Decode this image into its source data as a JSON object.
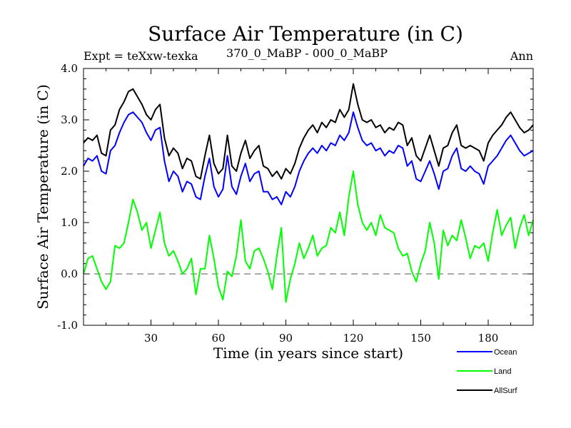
{
  "chart_data": {
    "type": "line",
    "title": "Surface Air Temperature (in C)",
    "subtitle_left": "Expt = teXxw-texka",
    "subtitle_center": "370_0_MaBP - 000_0_MaBP",
    "subtitle_right": "Ann",
    "xlabel": "Time (in years since start)",
    "ylabel": "Surface Air Temperature (in C)",
    "xlim": [
      0,
      200
    ],
    "ylim": [
      -1.0,
      4.0
    ],
    "xticks": [
      30,
      60,
      90,
      120,
      150,
      180
    ],
    "xtick_labels": [
      "30",
      "60",
      "90",
      "120",
      "150",
      "180"
    ],
    "yticks": [
      -1.0,
      0.0,
      1.0,
      2.0,
      3.0,
      4.0
    ],
    "ytick_labels": [
      "-1.0",
      "0.0",
      "1.0",
      "2.0",
      "3.0",
      "4.0"
    ],
    "reference_line": 0.0,
    "legend_position": "bottom-right, outside plot",
    "series": [
      {
        "name": "Ocean",
        "color": "#0000ff",
        "x": [
          0,
          2,
          4,
          6,
          8,
          10,
          12,
          14,
          16,
          18,
          20,
          22,
          24,
          26,
          28,
          30,
          32,
          34,
          36,
          38,
          40,
          42,
          44,
          46,
          48,
          50,
          52,
          54,
          56,
          58,
          60,
          62,
          64,
          66,
          68,
          70,
          72,
          74,
          76,
          78,
          80,
          82,
          84,
          86,
          88,
          90,
          92,
          94,
          96,
          98,
          100,
          102,
          104,
          106,
          108,
          110,
          112,
          114,
          116,
          118,
          120,
          122,
          124,
          126,
          128,
          130,
          132,
          134,
          136,
          138,
          140,
          142,
          144,
          146,
          148,
          150,
          152,
          154,
          156,
          158,
          160,
          162,
          164,
          166,
          168,
          170,
          172,
          174,
          176,
          178,
          180,
          182,
          184,
          186,
          188,
          190,
          192,
          194,
          196,
          198,
          200
        ],
        "values": [
          2.1,
          2.25,
          2.2,
          2.3,
          2.0,
          1.95,
          2.4,
          2.5,
          2.75,
          2.95,
          3.1,
          3.15,
          3.05,
          2.95,
          2.75,
          2.6,
          2.8,
          2.85,
          2.2,
          1.8,
          2.0,
          1.9,
          1.6,
          1.8,
          1.75,
          1.5,
          1.45,
          1.9,
          2.25,
          1.7,
          1.5,
          1.65,
          2.3,
          1.7,
          1.55,
          1.9,
          2.15,
          1.8,
          1.95,
          2.0,
          1.6,
          1.6,
          1.45,
          1.5,
          1.35,
          1.6,
          1.5,
          1.7,
          2.0,
          2.2,
          2.35,
          2.45,
          2.35,
          2.5,
          2.4,
          2.55,
          2.5,
          2.7,
          2.6,
          2.75,
          3.15,
          2.85,
          2.6,
          2.5,
          2.55,
          2.4,
          2.45,
          2.3,
          2.4,
          2.35,
          2.5,
          2.45,
          2.1,
          2.2,
          1.85,
          1.8,
          2.0,
          2.2,
          1.95,
          1.65,
          2.0,
          2.05,
          2.3,
          2.45,
          2.05,
          2.0,
          2.1,
          2.0,
          1.95,
          1.75,
          2.1,
          2.2,
          2.3,
          2.45,
          2.6,
          2.7,
          2.55,
          2.4,
          2.3,
          2.35,
          2.4
        ]
      },
      {
        "name": "Land",
        "color": "#00ff00",
        "x": [
          0,
          2,
          4,
          6,
          8,
          10,
          12,
          14,
          16,
          18,
          20,
          22,
          24,
          26,
          28,
          30,
          32,
          34,
          36,
          38,
          40,
          42,
          44,
          46,
          48,
          50,
          52,
          54,
          56,
          58,
          60,
          62,
          64,
          66,
          68,
          70,
          72,
          74,
          76,
          78,
          80,
          82,
          84,
          86,
          88,
          90,
          92,
          94,
          96,
          98,
          100,
          102,
          104,
          106,
          108,
          110,
          112,
          114,
          116,
          118,
          120,
          122,
          124,
          126,
          128,
          130,
          132,
          134,
          136,
          138,
          140,
          142,
          144,
          146,
          148,
          150,
          152,
          154,
          156,
          158,
          160,
          162,
          164,
          166,
          168,
          170,
          172,
          174,
          176,
          178,
          180,
          182,
          184,
          186,
          188,
          190,
          192,
          194,
          196,
          198,
          200
        ],
        "values": [
          0.0,
          0.3,
          0.35,
          0.1,
          -0.15,
          -0.3,
          -0.15,
          0.55,
          0.5,
          0.6,
          1.0,
          1.45,
          1.2,
          0.85,
          1.0,
          0.5,
          0.85,
          1.2,
          0.6,
          0.35,
          0.45,
          0.25,
          0.0,
          0.1,
          0.3,
          -0.4,
          0.1,
          0.1,
          0.75,
          0.3,
          -0.25,
          -0.5,
          0.05,
          -0.05,
          0.35,
          1.05,
          0.25,
          0.1,
          0.45,
          0.5,
          0.3,
          0.05,
          -0.3,
          0.35,
          0.9,
          -0.55,
          -0.1,
          0.2,
          0.6,
          0.3,
          0.5,
          0.75,
          0.35,
          0.5,
          0.55,
          0.9,
          0.8,
          1.2,
          0.75,
          1.5,
          2.0,
          1.35,
          1.0,
          0.85,
          1.0,
          0.75,
          1.15,
          0.9,
          0.85,
          0.8,
          0.5,
          0.35,
          0.4,
          0.05,
          -0.15,
          0.2,
          0.45,
          1.0,
          0.6,
          -0.1,
          0.85,
          0.55,
          0.75,
          0.65,
          1.05,
          0.7,
          0.3,
          0.55,
          0.5,
          0.6,
          0.25,
          0.8,
          1.25,
          0.75,
          0.95,
          1.1,
          0.5,
          0.9,
          1.15,
          0.75,
          1.05
        ]
      },
      {
        "name": "AllSurf",
        "color": "#000000",
        "x": [
          0,
          2,
          4,
          6,
          8,
          10,
          12,
          14,
          16,
          18,
          20,
          22,
          24,
          26,
          28,
          30,
          32,
          34,
          36,
          38,
          40,
          42,
          44,
          46,
          48,
          50,
          52,
          54,
          56,
          58,
          60,
          62,
          64,
          66,
          68,
          70,
          72,
          74,
          76,
          78,
          80,
          82,
          84,
          86,
          88,
          90,
          92,
          94,
          96,
          98,
          100,
          102,
          104,
          106,
          108,
          110,
          112,
          114,
          116,
          118,
          120,
          122,
          124,
          126,
          128,
          130,
          132,
          134,
          136,
          138,
          140,
          142,
          144,
          146,
          148,
          150,
          152,
          154,
          156,
          158,
          160,
          162,
          164,
          166,
          168,
          170,
          172,
          174,
          176,
          178,
          180,
          182,
          184,
          186,
          188,
          190,
          192,
          194,
          196,
          198,
          200
        ],
        "values": [
          2.55,
          2.65,
          2.6,
          2.7,
          2.35,
          2.3,
          2.8,
          2.9,
          3.2,
          3.35,
          3.55,
          3.6,
          3.45,
          3.3,
          3.1,
          3.0,
          3.2,
          3.3,
          2.65,
          2.3,
          2.45,
          2.35,
          2.05,
          2.25,
          2.2,
          1.9,
          1.85,
          2.3,
          2.7,
          2.15,
          1.95,
          2.05,
          2.7,
          2.1,
          2.0,
          2.35,
          2.6,
          2.25,
          2.4,
          2.5,
          2.1,
          2.05,
          1.9,
          2.0,
          1.85,
          2.05,
          1.95,
          2.15,
          2.45,
          2.65,
          2.8,
          2.9,
          2.75,
          2.95,
          2.85,
          3.0,
          2.95,
          3.2,
          3.05,
          3.2,
          3.7,
          3.3,
          3.0,
          2.95,
          3.0,
          2.85,
          2.9,
          2.75,
          2.85,
          2.8,
          2.95,
          2.9,
          2.5,
          2.65,
          2.3,
          2.2,
          2.45,
          2.7,
          2.4,
          2.1,
          2.45,
          2.5,
          2.75,
          2.9,
          2.5,
          2.45,
          2.5,
          2.45,
          2.4,
          2.2,
          2.55,
          2.7,
          2.8,
          2.9,
          3.05,
          3.15,
          3.0,
          2.85,
          2.75,
          2.8,
          2.9
        ]
      }
    ]
  }
}
